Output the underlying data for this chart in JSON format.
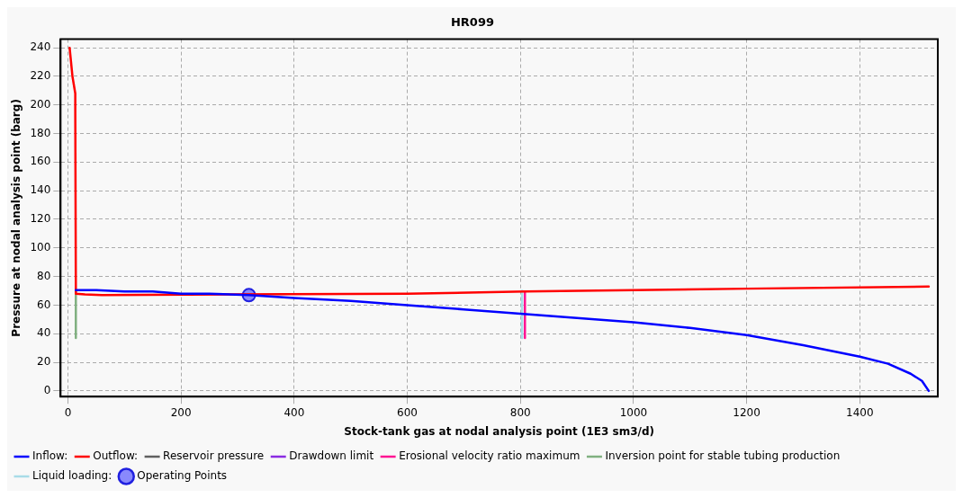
{
  "chart_data": {
    "type": "line",
    "title": "HR099",
    "xlabel": "Stock-tank gas at nodal analysis point (1E3 sm3/d)",
    "ylabel": "Pressure at nodal analysis point (barg)",
    "xlim": [
      -13,
      1538
    ],
    "ylim": [
      -4,
      246
    ],
    "xticks": [
      0,
      200,
      400,
      600,
      800,
      1000,
      1200,
      1400
    ],
    "yticks": [
      0,
      20,
      40,
      60,
      80,
      100,
      120,
      140,
      160,
      180,
      200,
      220,
      240
    ],
    "grid": true,
    "legend": "bottom",
    "marker": "none",
    "series": [
      {
        "name": "Inflow:",
        "type": "line",
        "color": "#0000ff",
        "x": [
          14,
          50,
          100,
          150,
          200,
          250,
          320,
          400,
          500,
          600,
          700,
          800,
          900,
          1000,
          1100,
          1200,
          1300,
          1400,
          1450,
          1490,
          1510,
          1522
        ],
        "values": [
          70.5,
          70.5,
          69.5,
          69.5,
          68,
          68,
          67,
          65,
          63,
          60,
          57,
          54,
          51,
          48,
          44,
          39,
          32,
          24,
          19,
          12,
          7,
          0
        ]
      },
      {
        "name": "Outflow:",
        "type": "line",
        "color": "#ff0000",
        "x": [
          3,
          8,
          13,
          13,
          14,
          30,
          60,
          600,
          808,
          1000,
          1200,
          1522
        ],
        "values": [
          240,
          220,
          208,
          196,
          68,
          67.5,
          67,
          68,
          69.5,
          70.5,
          71.5,
          73
        ]
      },
      {
        "name": "Reservoir pressure",
        "type": "line",
        "color": "#606060"
      },
      {
        "name": "Drawdown limit",
        "type": "line",
        "color": "#8a2be2"
      },
      {
        "name": "Erosional velocity ratio maximum",
        "type": "line",
        "color": "#ff1493",
        "x": [
          808,
          808
        ],
        "values": [
          37,
          69.5
        ]
      },
      {
        "name": "Inversion point for stable tubing production",
        "type": "line",
        "color": "#80b080",
        "x": [
          14,
          14
        ],
        "values": [
          37,
          70
        ]
      },
      {
        "name": "Liquid loading:",
        "type": "line",
        "color": "#a8dce8",
        "x": [
          803,
          803
        ],
        "values": [
          37,
          70
        ]
      },
      {
        "name": "Operating Points",
        "type": "scatter",
        "marker": "circle",
        "color": "#4040ff",
        "x": [
          320
        ],
        "values": [
          67
        ]
      }
    ]
  }
}
